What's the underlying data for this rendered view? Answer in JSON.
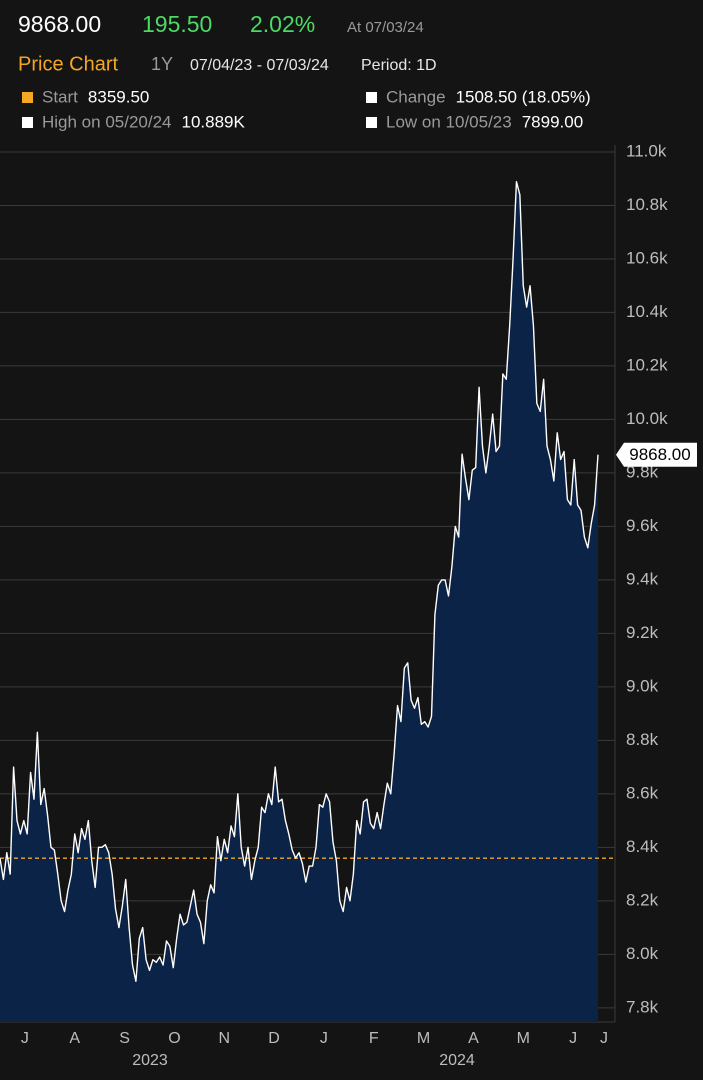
{
  "header": {
    "price": "9868.00",
    "change": "195.50",
    "change_pct": "2.02%",
    "as_of": "At 07/03/24"
  },
  "toolbar": {
    "title": "Price Chart",
    "range": "1Y",
    "dates": "07/04/23 - 07/03/24",
    "period": "Period: 1D"
  },
  "legend": [
    {
      "label": "Start",
      "value": "8359.50",
      "color": "#f5a623"
    },
    {
      "label": "Change",
      "value": "1508.50 (18.05%)",
      "color": "#ffffff"
    },
    {
      "label": "High on 05/20/24",
      "value": "10.889K",
      "color": "#ffffff"
    },
    {
      "label": "Low on 10/05/23",
      "value": "7899.00",
      "color": "#ffffff"
    }
  ],
  "chart_data": {
    "type": "area",
    "color": "#ffffff",
    "fill": "#0c2348",
    "start_line_color": "#f5a623",
    "last_label": "9868.00",
    "ylim": [
      7747,
      11026
    ],
    "yticks": [
      {
        "value": 11000,
        "label": "11.0k"
      },
      {
        "value": 10800,
        "label": "10.8k"
      },
      {
        "value": 10600,
        "label": "10.6k"
      },
      {
        "value": 10400,
        "label": "10.4k"
      },
      {
        "value": 10200,
        "label": "10.2k"
      },
      {
        "value": 10000,
        "label": "10.0k"
      },
      {
        "value": 9800,
        "label": "9.8k"
      },
      {
        "value": 9600,
        "label": "9.6k"
      },
      {
        "value": 9400,
        "label": "9.4k"
      },
      {
        "value": 9200,
        "label": "9.2k"
      },
      {
        "value": 9000,
        "label": "9.0k"
      },
      {
        "value": 8800,
        "label": "8.8k"
      },
      {
        "value": 8600,
        "label": "8.6k"
      },
      {
        "value": 8400,
        "label": "8.4k"
      },
      {
        "value": 8200,
        "label": "8.2k"
      },
      {
        "value": 8000,
        "label": "8.0k"
      },
      {
        "value": 7800,
        "label": "7.8k"
      }
    ],
    "grid": true,
    "months": [
      "J",
      "A",
      "S",
      "O",
      "N",
      "D",
      "J",
      "F",
      "M",
      "A",
      "M",
      "J",
      "J"
    ],
    "years": [
      "2023",
      "2024"
    ],
    "values": [
      8359.5,
      8280,
      8380,
      8300,
      8700,
      8500,
      8450,
      8500,
      8450,
      8680,
      8580,
      8830,
      8560,
      8620,
      8520,
      8400,
      8390,
      8300,
      8200,
      8160,
      8240,
      8300,
      8450,
      8380,
      8470,
      8430,
      8500,
      8350,
      8250,
      8400,
      8400,
      8410,
      8380,
      8300,
      8170,
      8100,
      8180,
      8280,
      8100,
      7960,
      7899,
      8060,
      8100,
      7980,
      7940,
      7980,
      7970,
      7990,
      7960,
      8050,
      8030,
      7950,
      8060,
      8150,
      8110,
      8120,
      8180,
      8240,
      8150,
      8120,
      8040,
      8200,
      8260,
      8230,
      8440,
      8350,
      8430,
      8380,
      8480,
      8440,
      8600,
      8400,
      8330,
      8400,
      8280,
      8350,
      8400,
      8550,
      8530,
      8600,
      8560,
      8700,
      8570,
      8580,
      8500,
      8450,
      8390,
      8360,
      8380,
      8340,
      8270,
      8330,
      8330,
      8400,
      8560,
      8550,
      8600,
      8570,
      8420,
      8350,
      8200,
      8160,
      8250,
      8200,
      8300,
      8500,
      8450,
      8570,
      8580,
      8490,
      8470,
      8530,
      8470,
      8560,
      8640,
      8600,
      8750,
      8930,
      8870,
      9070,
      9090,
      8950,
      8920,
      8960,
      8860,
      8870,
      8850,
      8890,
      9270,
      9380,
      9400,
      9400,
      9340,
      9450,
      9600,
      9560,
      9870,
      9780,
      9700,
      9810,
      9820,
      10120,
      9900,
      9800,
      9900,
      10020,
      9880,
      9900,
      10170,
      10150,
      10350,
      10600,
      10889,
      10840,
      10500,
      10420,
      10500,
      10350,
      10060,
      10030,
      10150,
      9900,
      9850,
      9770,
      9950,
      9850,
      9880,
      9700,
      9680,
      9850,
      9680,
      9660,
      9560,
      9520,
      9610,
      9680,
      9868
    ]
  }
}
